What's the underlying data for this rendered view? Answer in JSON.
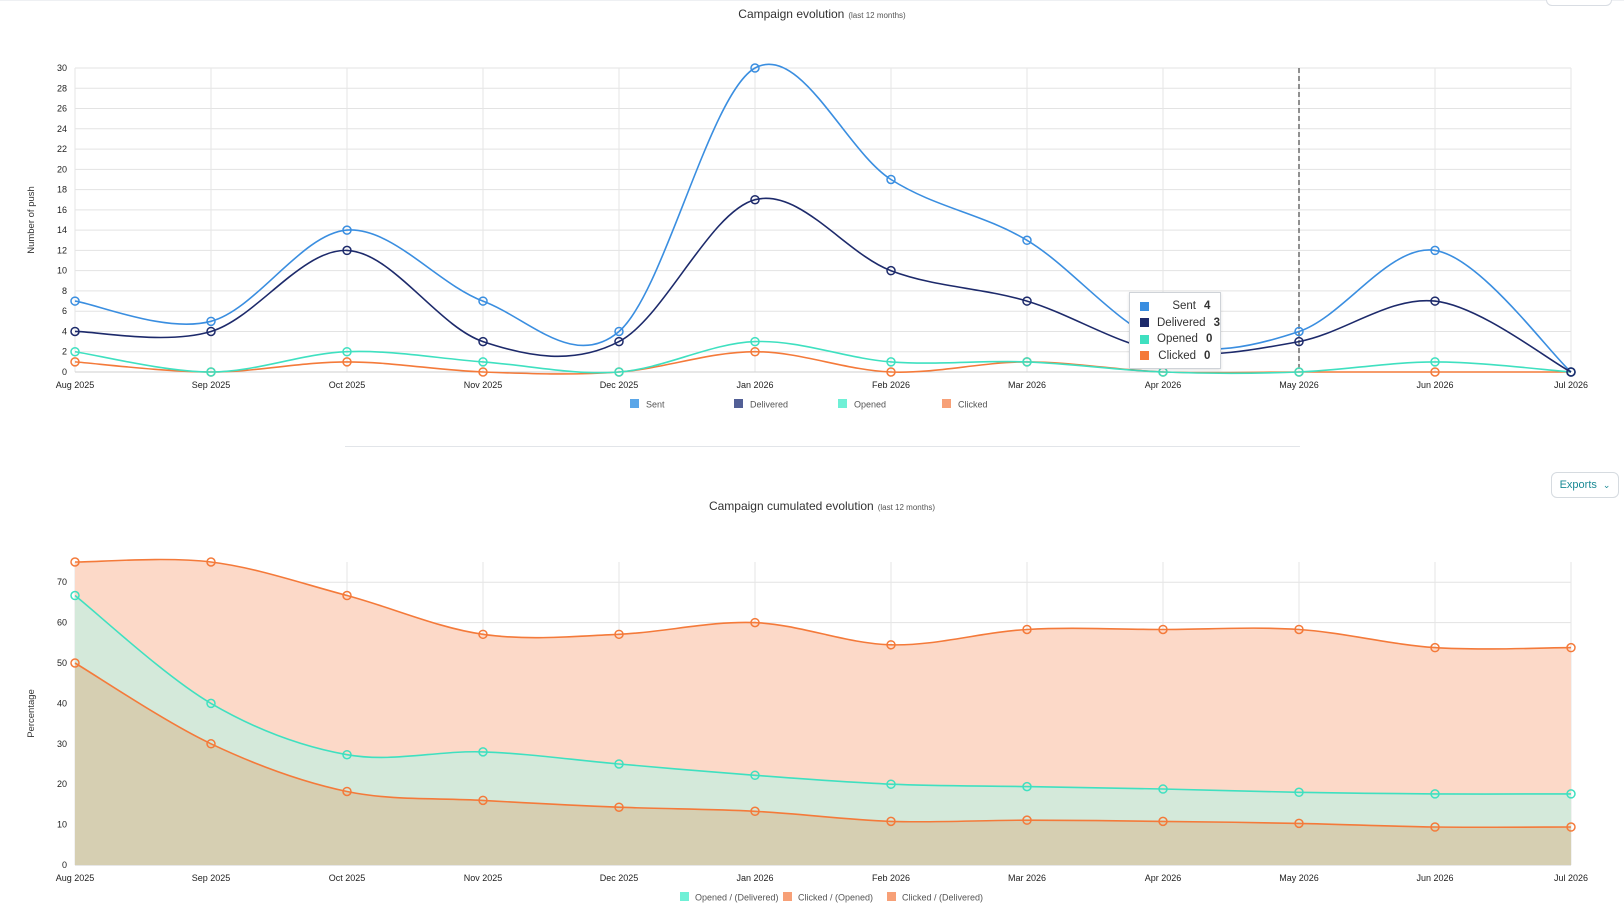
{
  "chart_data": [
    {
      "type": "line",
      "title": "Campaign evolution",
      "subtitle": "(last 12 months)",
      "ylabel": "Number of push",
      "xlabel": "",
      "categories": [
        "Aug 2025",
        "Sep 2025",
        "Oct 2025",
        "Nov 2025",
        "Dec 2025",
        "Jan 2026",
        "Feb 2026",
        "Mar 2026",
        "Apr 2026",
        "May 2026",
        "Jun 2026",
        "Jul 2026"
      ],
      "ylim": [
        0,
        30
      ],
      "yticks": [
        0,
        2,
        4,
        6,
        8,
        10,
        12,
        14,
        16,
        18,
        20,
        22,
        24,
        26,
        28,
        30
      ],
      "grid": true,
      "legend_position": "bottom",
      "series": [
        {
          "name": "Sent",
          "color": "#3a8ee0",
          "values": [
            7,
            5,
            14,
            7,
            4,
            30,
            19,
            13,
            3,
            4,
            12,
            0
          ]
        },
        {
          "name": "Delivered",
          "color": "#1d2a6b",
          "values": [
            4,
            4,
            12,
            3,
            3,
            17,
            10,
            7,
            2,
            3,
            7,
            0
          ]
        },
        {
          "name": "Opened",
          "color": "#3fe0c0",
          "values": [
            2,
            0,
            2,
            1,
            0,
            3,
            1,
            1,
            0,
            0,
            1,
            0
          ]
        },
        {
          "name": "Clicked",
          "color": "#f47a3a",
          "values": [
            1,
            0,
            1,
            0,
            0,
            2,
            0,
            1,
            0,
            0,
            0,
            0
          ]
        }
      ],
      "legend_colors": [
        "#5aa6e8",
        "#525f96",
        "#6ff0d6",
        "#f7a077"
      ],
      "hover_index": 9,
      "tooltip": {
        "rows": [
          {
            "name": "Sent",
            "value": "4",
            "color": "#3a8ee0"
          },
          {
            "name": "Delivered",
            "value": "3",
            "color": "#1d2a6b"
          },
          {
            "name": "Opened",
            "value": "0",
            "color": "#3fe0c0"
          },
          {
            "name": "Clicked",
            "value": "0",
            "color": "#f47a3a"
          }
        ]
      }
    },
    {
      "type": "area",
      "title": "Campaign cumulated evolution",
      "subtitle": "(last 12 months)",
      "ylabel": "Percentage",
      "xlabel": "",
      "categories": [
        "Aug 2025",
        "Sep 2025",
        "Oct 2025",
        "Nov 2025",
        "Dec 2025",
        "Jan 2026",
        "Feb 2026",
        "Mar 2026",
        "Apr 2026",
        "May 2026",
        "Jun 2026",
        "Jul 2026"
      ],
      "ylim": [
        0,
        75
      ],
      "yticks": [
        0,
        10,
        20,
        30,
        40,
        50,
        60,
        70
      ],
      "grid": true,
      "legend_position": "bottom",
      "series": [
        {
          "name": "Clicked / (Opened)",
          "color": "#f47a3a",
          "fill": "#fcd9c8",
          "values": [
            75,
            75,
            66.7,
            57.1,
            57.1,
            60,
            54.5,
            58.3,
            58.3,
            58.3,
            53.8,
            53.8
          ]
        },
        {
          "name": "Opened / (Delivered)",
          "color": "#3fe0c0",
          "fill": "#d4e9da",
          "values": [
            66.7,
            40,
            27.3,
            28,
            25,
            22.2,
            20,
            19.4,
            18.8,
            18,
            17.6,
            17.6
          ]
        },
        {
          "name": "Clicked / (Delivered)",
          "color": "#f47a3a",
          "fill": "#d6cfb2",
          "values": [
            50,
            30,
            18.2,
            16,
            14.3,
            13.3,
            10.8,
            11.1,
            10.8,
            10.3,
            9.4,
            9.4
          ]
        }
      ],
      "legend": [
        {
          "name": "Opened / (Delivered)",
          "color": "#6ff0d6"
        },
        {
          "name": "Clicked / (Opened)",
          "color": "#f7a077"
        },
        {
          "name": "Clicked / (Delivered)",
          "color": "#f7a077"
        }
      ]
    }
  ],
  "toolbar": {
    "exports_label": "Exports"
  }
}
